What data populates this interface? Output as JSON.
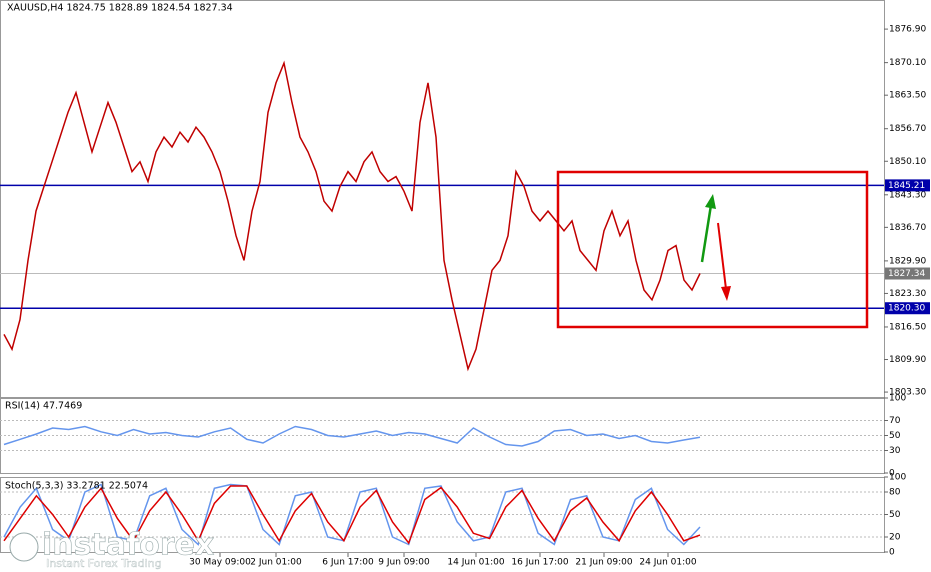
{
  "chart_data": [
    {
      "type": "line",
      "title": "XAUUSD,H4 1824.75 1828.89 1824.54 1827.34",
      "categories": [
        null,
        null,
        null,
        null,
        null,
        null,
        null,
        null,
        null,
        null,
        null,
        null,
        null,
        null,
        null,
        null,
        null,
        null,
        null,
        null,
        null,
        null,
        null,
        null,
        null,
        null,
        null,
        "30 May 09:00",
        null,
        null,
        null,
        null,
        null,
        null,
        "2 Jun 01:00",
        null,
        null,
        null,
        null,
        null,
        null,
        null,
        null,
        "6 Jun 17:00",
        null,
        null,
        null,
        null,
        null,
        null,
        "9 Jun 09:00",
        null,
        null,
        null,
        null,
        null,
        null,
        null,
        null,
        "14 Jun 01:00",
        null,
        null,
        null,
        null,
        null,
        null,
        null,
        "16 Jun 17:00",
        null,
        null,
        null,
        null,
        null,
        null,
        null,
        "21 Jun 09:00",
        null,
        null,
        null,
        null,
        null,
        null,
        null,
        "24 Jun 01:00",
        null,
        null,
        null,
        null
      ],
      "series": [
        {
          "name": "XAUUSD",
          "color": "#c00000",
          "values": [
            1815,
            1812,
            1818,
            1830,
            1840,
            1845,
            1850,
            1855,
            1860,
            1864,
            1858,
            1852,
            1857,
            1862,
            1858,
            1853,
            1848,
            1850,
            1846,
            1852,
            1855,
            1853,
            1856,
            1854,
            1857,
            1855,
            1852,
            1848,
            1842,
            1835,
            1830,
            1840,
            1846,
            1860,
            1866,
            1870,
            1862,
            1855,
            1852,
            1848,
            1842,
            1840,
            1845,
            1848,
            1846,
            1850,
            1852,
            1848,
            1846,
            1847,
            1844,
            1840,
            1858,
            1866,
            1855,
            1830,
            1822,
            1815,
            1808,
            1812,
            1820,
            1828,
            1830,
            1835,
            1848,
            1845,
            1840,
            1838,
            1840,
            1838,
            1836,
            1838,
            1832,
            1830,
            1828,
            1836,
            1840,
            1835,
            1838,
            1830,
            1824,
            1822,
            1826,
            1832,
            1833,
            1826,
            1824,
            1827.34
          ]
        }
      ],
      "ylim": [
        1802.3,
        1882.8
      ],
      "yticks": [
        {
          "value": 1876.9,
          "label": "1876.90"
        },
        {
          "value": 1870.1,
          "label": "1870.10"
        },
        {
          "value": 1863.5,
          "label": "1863.50"
        },
        {
          "value": 1856.7,
          "label": "1856.70"
        },
        {
          "value": 1850.1,
          "label": "1850.10"
        },
        {
          "value": 1843.3,
          "label": "1843.30"
        },
        {
          "value": 1836.7,
          "label": "1836.70"
        },
        {
          "value": 1829.9,
          "label": "1829.90"
        },
        {
          "value": 1823.3,
          "label": "1823.30"
        },
        {
          "value": 1816.5,
          "label": "1816.50"
        },
        {
          "value": 1809.9,
          "label": "1809.90"
        },
        {
          "value": 1803.3,
          "label": "1803.30"
        }
      ],
      "levels": [
        {
          "value": 1845.21,
          "label": "1845.21",
          "color": "#0000aa"
        },
        {
          "value": 1820.3,
          "label": "1820.30",
          "color": "#0000aa"
        }
      ],
      "last": 1827.34
    },
    {
      "type": "line",
      "title": "RSI(14) 47.7469",
      "series": [
        {
          "name": "RSI(14)",
          "color": "#6495ed",
          "values": [
            38,
            45,
            52,
            60,
            58,
            62,
            55,
            50,
            58,
            52,
            54,
            50,
            48,
            55,
            60,
            45,
            40,
            52,
            62,
            58,
            50,
            48,
            52,
            56,
            50,
            54,
            52,
            46,
            40,
            60,
            48,
            38,
            36,
            42,
            56,
            58,
            50,
            52,
            46,
            50,
            42,
            40,
            44,
            47.7469
          ]
        }
      ],
      "ylim": [
        0,
        100
      ],
      "yticks": [
        100,
        70,
        50,
        30,
        0
      ]
    },
    {
      "type": "line",
      "title": "Stoch(5,3,3) 33.2781 22.5074",
      "series": [
        {
          "name": "Main",
          "color": "#6495ed",
          "values": [
            20,
            60,
            85,
            30,
            15,
            80,
            90,
            20,
            15,
            75,
            85,
            30,
            10,
            85,
            90,
            88,
            30,
            10,
            75,
            80,
            20,
            15,
            80,
            85,
            20,
            10,
            85,
            88,
            40,
            15,
            20,
            80,
            85,
            25,
            10,
            70,
            75,
            20,
            15,
            70,
            85,
            30,
            10,
            33.2781
          ]
        },
        {
          "name": "Signal",
          "color": "#dd0000",
          "values": [
            15,
            45,
            75,
            50,
            20,
            60,
            85,
            45,
            15,
            55,
            80,
            50,
            15,
            65,
            88,
            88,
            50,
            15,
            55,
            78,
            40,
            15,
            60,
            82,
            40,
            12,
            70,
            86,
            60,
            25,
            18,
            60,
            82,
            45,
            15,
            55,
            72,
            40,
            15,
            55,
            80,
            50,
            15,
            22.5074
          ]
        }
      ],
      "ylim": [
        0,
        100
      ],
      "yticks": [
        100,
        80,
        50,
        20,
        0
      ]
    }
  ],
  "watermark": {
    "brand": "instaforex",
    "tagline": "Instant Forex Trading"
  }
}
